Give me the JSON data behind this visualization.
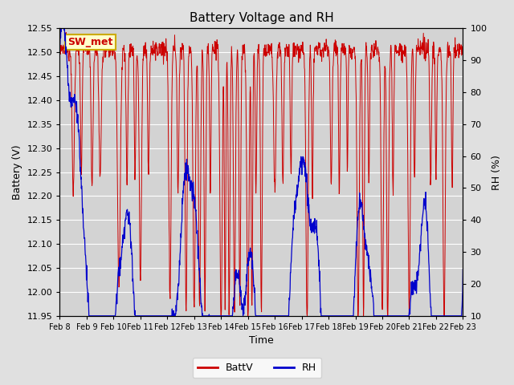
{
  "title": "Battery Voltage and RH",
  "xlabel": "Time",
  "ylabel_left": "Battery (V)",
  "ylabel_right": "RH (%)",
  "station_label": "SW_met",
  "legend_labels": [
    "BattV",
    "RH"
  ],
  "batt_color": "#cc0000",
  "rh_color": "#0000cc",
  "ylim_left": [
    11.95,
    12.55
  ],
  "ylim_right": [
    10,
    100
  ],
  "yticks_left": [
    11.95,
    12.0,
    12.05,
    12.1,
    12.15,
    12.2,
    12.25,
    12.3,
    12.35,
    12.4,
    12.45,
    12.5,
    12.55
  ],
  "yticks_right": [
    10,
    20,
    30,
    40,
    50,
    60,
    70,
    80,
    90,
    100
  ],
  "bg_color": "#e0e0e0",
  "plot_bg_color": "#d3d3d3",
  "grid_color": "#ffffff",
  "title_fontsize": 11,
  "axis_fontsize": 9,
  "tick_fontsize": 8,
  "legend_fontsize": 9,
  "station_box_facecolor": "#ffffcc",
  "station_box_edgecolor": "#ccaa00",
  "n_days": 15,
  "pts_per_day": 96,
  "batt_base": 12.505,
  "batt_noise": 0.008,
  "rh_noise": 1.5
}
